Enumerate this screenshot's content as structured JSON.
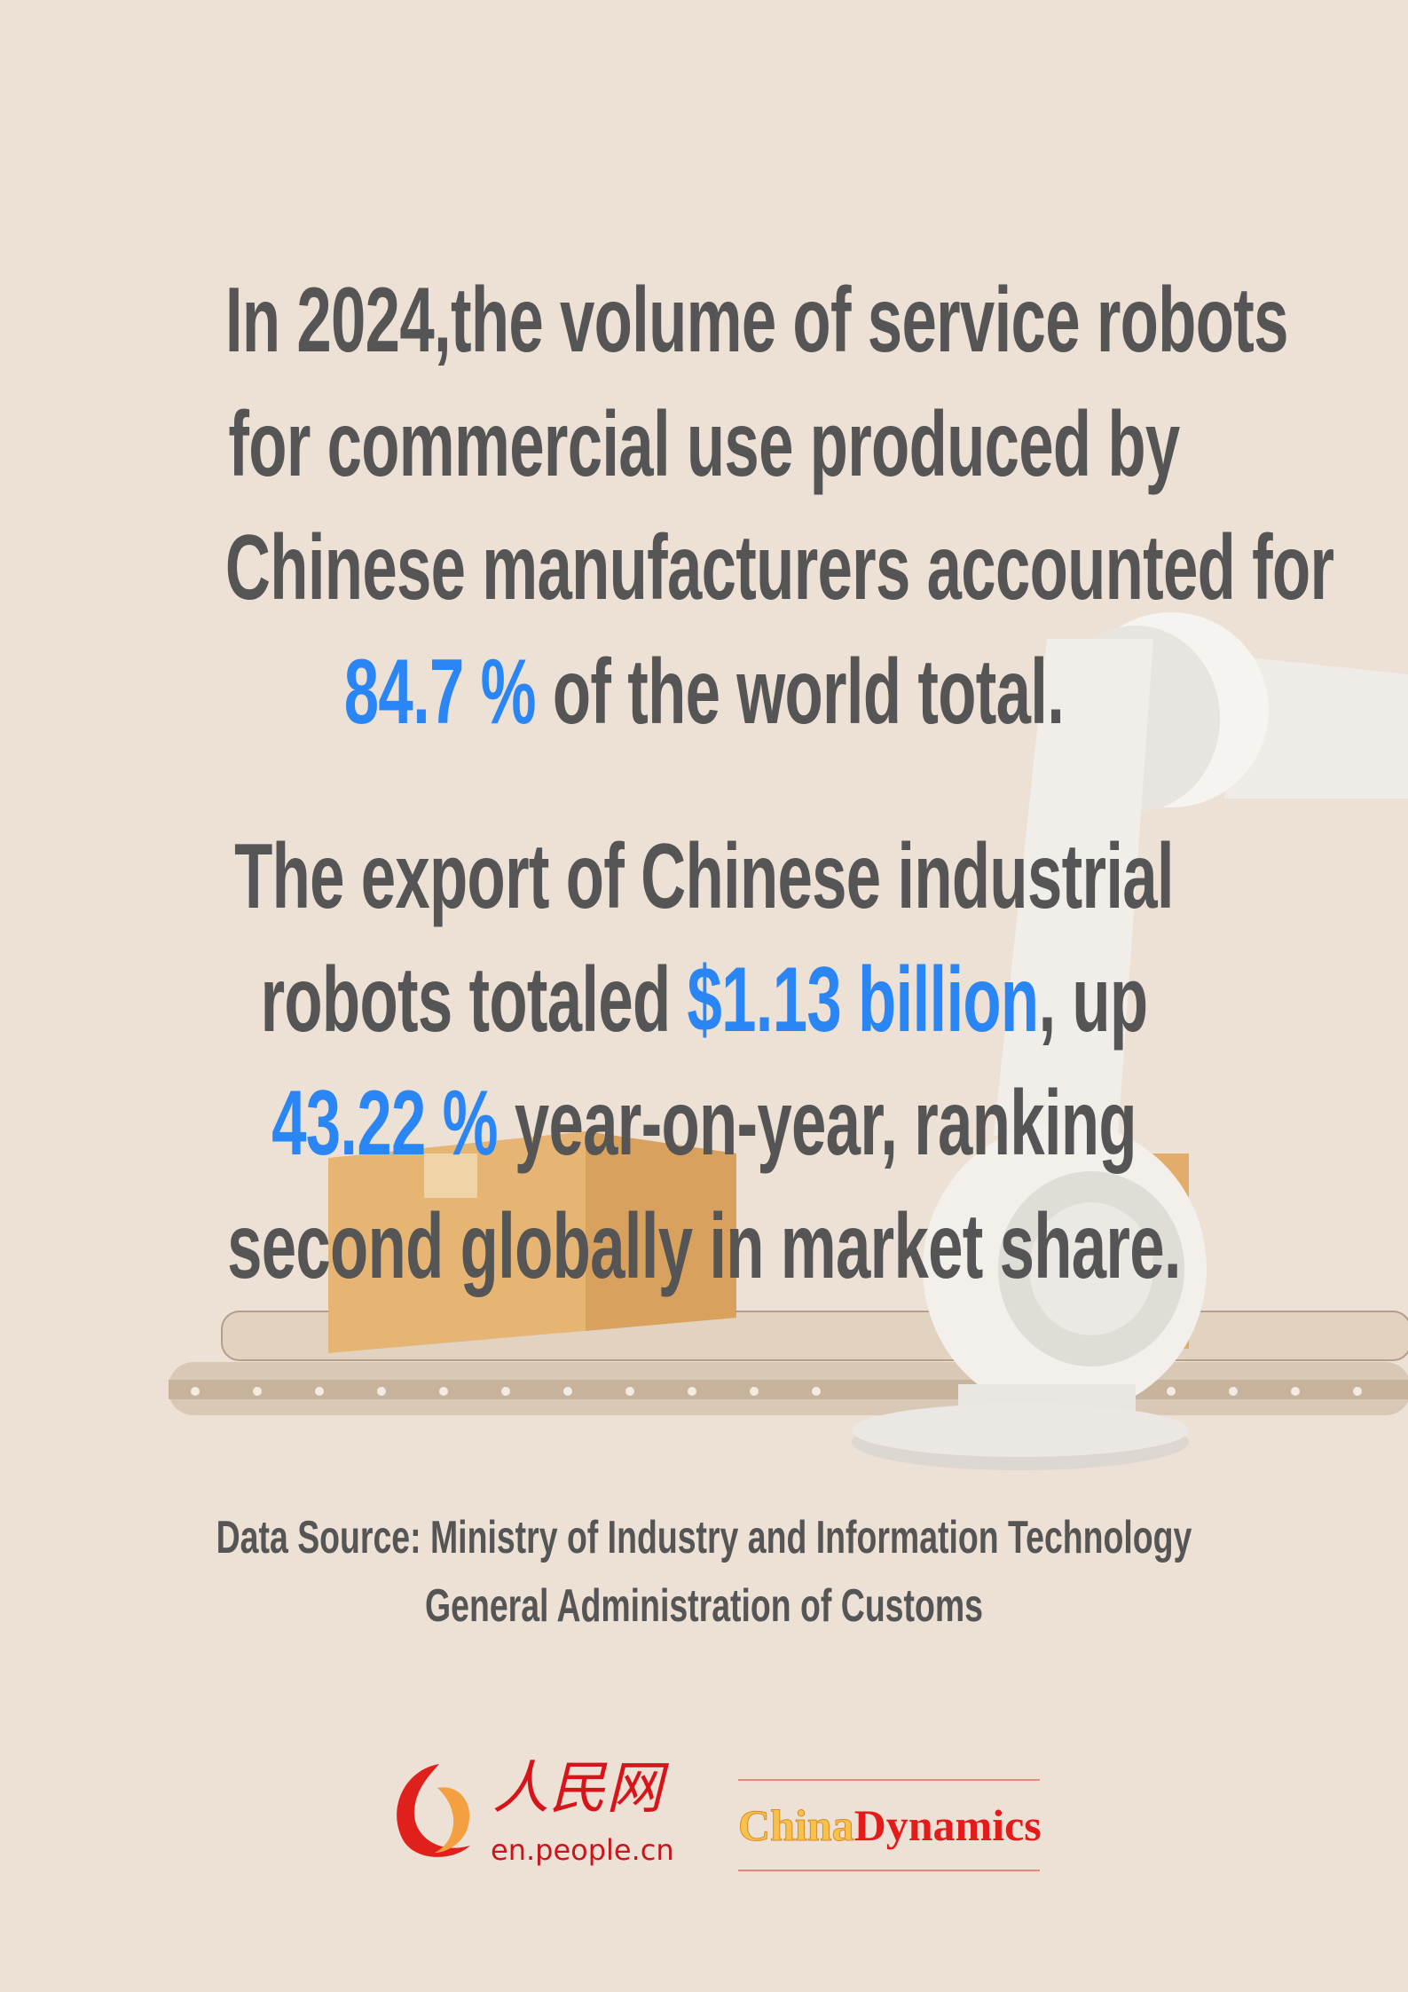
{
  "paragraph1": {
    "line1": "In 2024,the volume of service robots",
    "line2": "for commercial use produced by",
    "line3": "Chinese manufacturers accounted for",
    "line4_highlight": "84.7 %",
    "line4_rest": " of the world total."
  },
  "paragraph2": {
    "line1": "The export of Chinese industrial",
    "line2_pre": "robots totaled ",
    "line2_highlight": "$1.13 billion",
    "line2_post": ", up",
    "line3_highlight": "43.22 %",
    "line3_rest": " year-on-year, ranking",
    "line4": "second globally in market share."
  },
  "source": {
    "line1": "Data Source: Ministry of Industry and Information Technology",
    "line2": "General Administration of Customs"
  },
  "logos": {
    "people_cn": "人民网",
    "people_url": "en.people.cn",
    "china": "China",
    "dynamics": "Dynamics"
  },
  "colors": {
    "background": "#ede1d5",
    "text": "#555555",
    "highlight": "#2a86f5"
  }
}
